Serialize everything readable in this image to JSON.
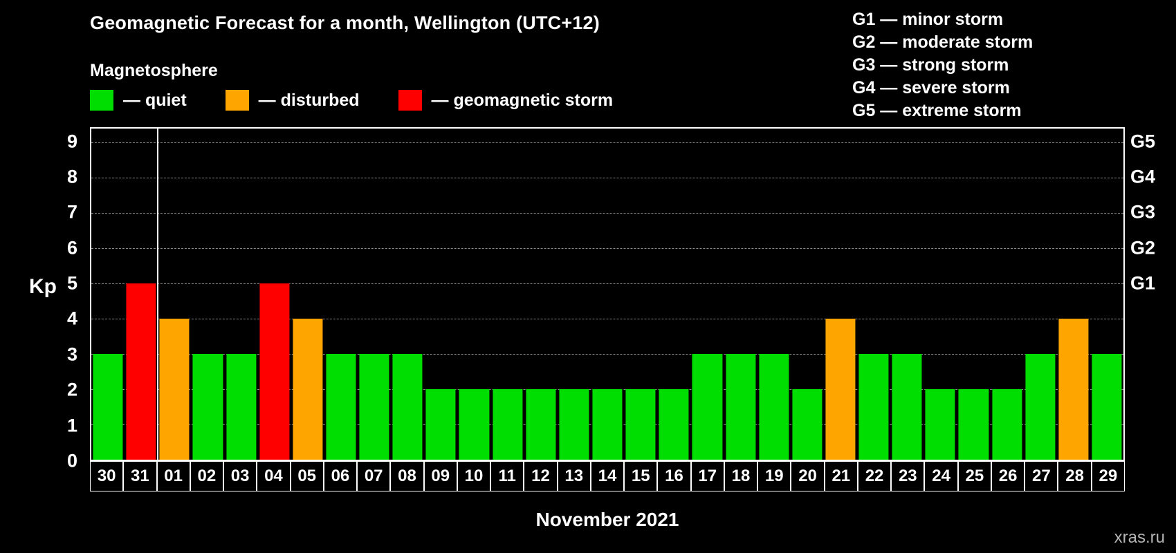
{
  "title": "Geomagnetic Forecast for a month, Wellington (UTC+12)",
  "subtitle": "Magnetosphere",
  "legend": [
    {
      "status": "quiet",
      "label": "— quiet",
      "color": "#00dd00"
    },
    {
      "status": "disturbed",
      "label": "— disturbed",
      "color": "#ffa500"
    },
    {
      "status": "storm",
      "label": "— geomagnetic storm",
      "color": "#ff0000"
    }
  ],
  "storm_scale": [
    "G1 — minor storm",
    "G2 — moderate storm",
    "G3 — strong storm",
    "G4 — severe storm",
    "G5 — extreme storm"
  ],
  "y_axis": {
    "label": "Kp",
    "ticks": [
      0,
      1,
      2,
      3,
      4,
      5,
      6,
      7,
      8,
      9
    ]
  },
  "right_axis": {
    "ticks": [
      {
        "label": "G1",
        "value": 5
      },
      {
        "label": "G2",
        "value": 6
      },
      {
        "label": "G3",
        "value": 7
      },
      {
        "label": "G4",
        "value": 8
      },
      {
        "label": "G5",
        "value": 9
      }
    ]
  },
  "x_title": "November 2021",
  "watermark": "xras.ru",
  "chart_data": {
    "type": "bar",
    "title": "Geomagnetic Forecast for a month, Wellington (UTC+12)",
    "xlabel": "November 2021",
    "ylabel": "Kp",
    "ylim": [
      0,
      9
    ],
    "y_max_display": 9.4,
    "grid": "dashed horizontal at Kp 1-9",
    "legend_position": "top-left",
    "categories": [
      "30",
      "31",
      "01",
      "02",
      "03",
      "04",
      "05",
      "06",
      "07",
      "08",
      "09",
      "10",
      "11",
      "12",
      "13",
      "14",
      "15",
      "16",
      "17",
      "18",
      "19",
      "20",
      "21",
      "22",
      "23",
      "24",
      "25",
      "26",
      "27",
      "28",
      "29"
    ],
    "values": [
      3,
      5,
      4,
      3,
      3,
      5,
      4,
      3,
      3,
      3,
      2,
      2,
      2,
      2,
      2,
      2,
      2,
      2,
      3,
      3,
      3,
      2,
      4,
      3,
      3,
      2,
      2,
      2,
      3,
      4,
      3
    ],
    "statuses": [
      "quiet",
      "storm",
      "disturbed",
      "quiet",
      "quiet",
      "storm",
      "disturbed",
      "quiet",
      "quiet",
      "quiet",
      "quiet",
      "quiet",
      "quiet",
      "quiet",
      "quiet",
      "quiet",
      "quiet",
      "quiet",
      "quiet",
      "quiet",
      "quiet",
      "quiet",
      "disturbed",
      "quiet",
      "quiet",
      "quiet",
      "quiet",
      "quiet",
      "quiet",
      "disturbed",
      "quiet"
    ],
    "colors": {
      "quiet": "#00dd00",
      "disturbed": "#ffa500",
      "storm": "#ff0000"
    },
    "gridlines": [
      1,
      2,
      3,
      4,
      5,
      6,
      7,
      8,
      9
    ],
    "separator_after_index": 1,
    "separator_meaning": "month boundary between October (30, 31) and November (01-29)"
  }
}
